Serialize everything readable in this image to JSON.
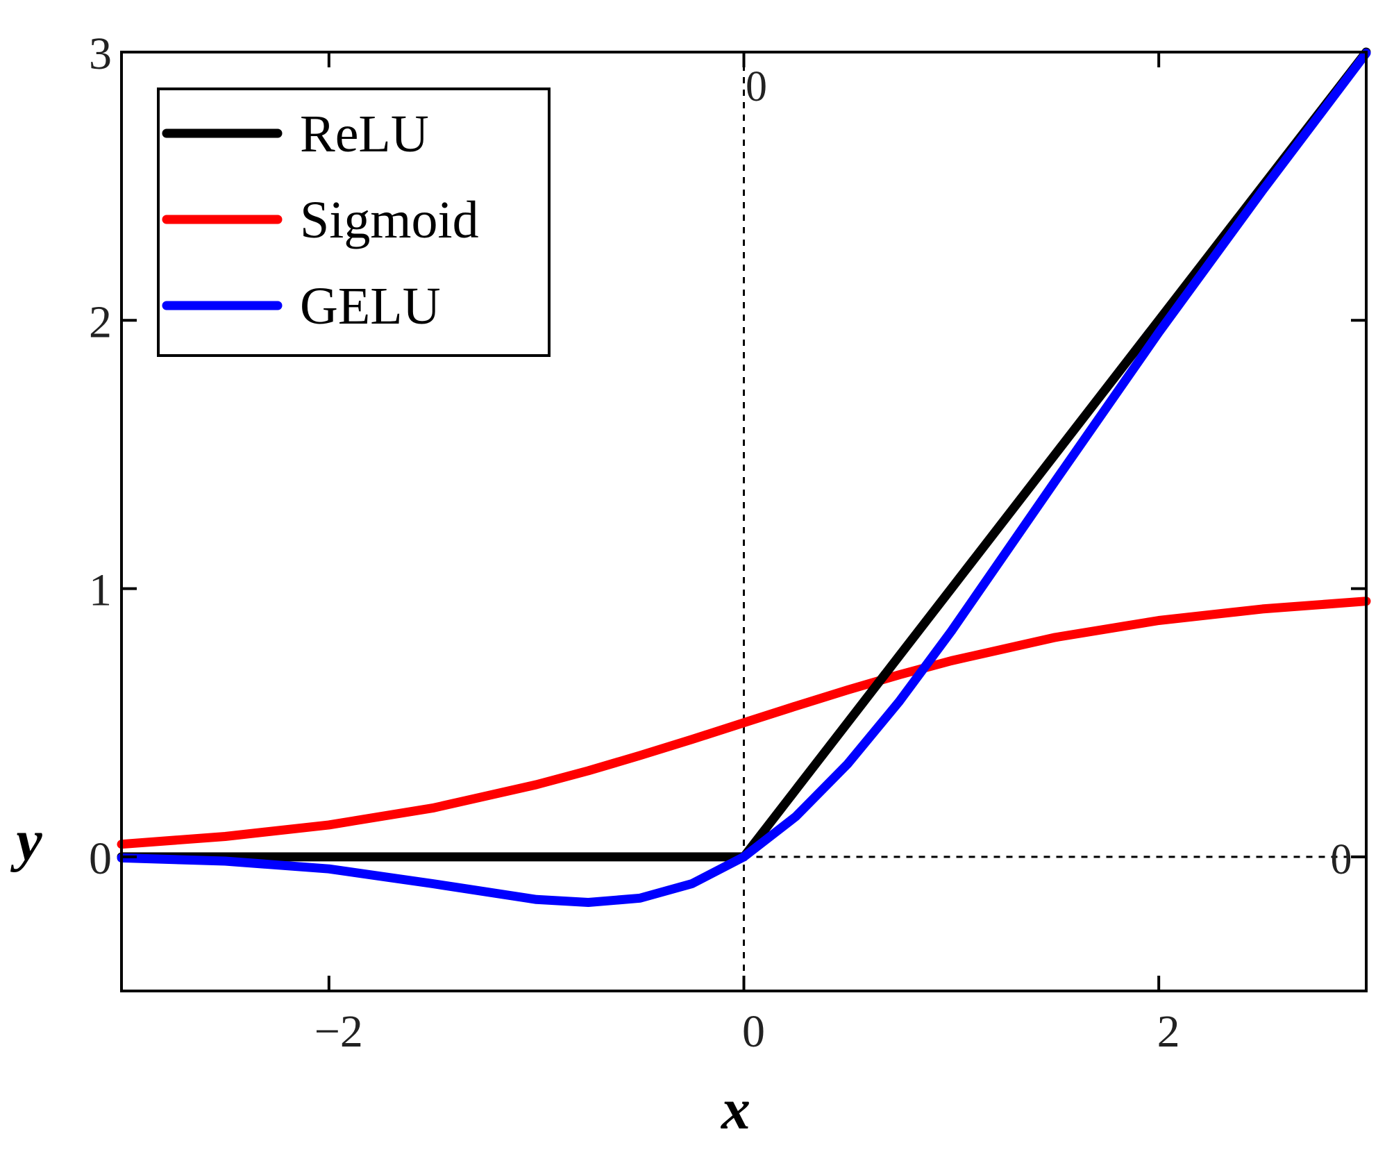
{
  "chart_data": {
    "type": "line",
    "xlabel": "x",
    "ylabel": "y",
    "xlim": [
      -3,
      3
    ],
    "ylim": [
      -0.5,
      3
    ],
    "xticks": [
      -2,
      0,
      2
    ],
    "yticks": [
      0,
      1,
      2,
      3
    ],
    "xtick_labels": [
      "−2",
      "0",
      "2"
    ],
    "ytick_labels": [
      "0",
      "1",
      "2",
      "3"
    ],
    "grid": false,
    "legend_position": "top-left",
    "reference_lines": [
      {
        "orientation": "vertical",
        "at": 0,
        "style": "dotted",
        "label": "0"
      },
      {
        "orientation": "horizontal",
        "at": 0,
        "style": "dotted",
        "label": "0"
      }
    ],
    "x": [
      -3,
      -2.5,
      -2,
      -1.5,
      -1,
      -0.75,
      -0.5,
      -0.25,
      0,
      0.25,
      0.5,
      0.75,
      1,
      1.5,
      2,
      2.5,
      3
    ],
    "series": [
      {
        "name": "ReLU",
        "color": "#000000",
        "values": [
          0,
          0,
          0,
          0,
          0,
          0,
          0,
          0,
          0,
          0.25,
          0.5,
          0.75,
          1,
          1.5,
          2,
          2.5,
          3
        ]
      },
      {
        "name": "Sigmoid",
        "color": "#ff0000",
        "values": [
          0.047,
          0.076,
          0.119,
          0.182,
          0.269,
          0.321,
          0.378,
          0.438,
          0.5,
          0.562,
          0.622,
          0.679,
          0.731,
          0.818,
          0.881,
          0.924,
          0.953
        ]
      },
      {
        "name": "GELU",
        "color": "#0000ff",
        "values": [
          -0.004,
          -0.016,
          -0.045,
          -0.1,
          -0.159,
          -0.17,
          -0.154,
          -0.1,
          0,
          0.15,
          0.346,
          0.58,
          0.841,
          1.4,
          1.955,
          2.484,
          2.996
        ]
      }
    ]
  }
}
